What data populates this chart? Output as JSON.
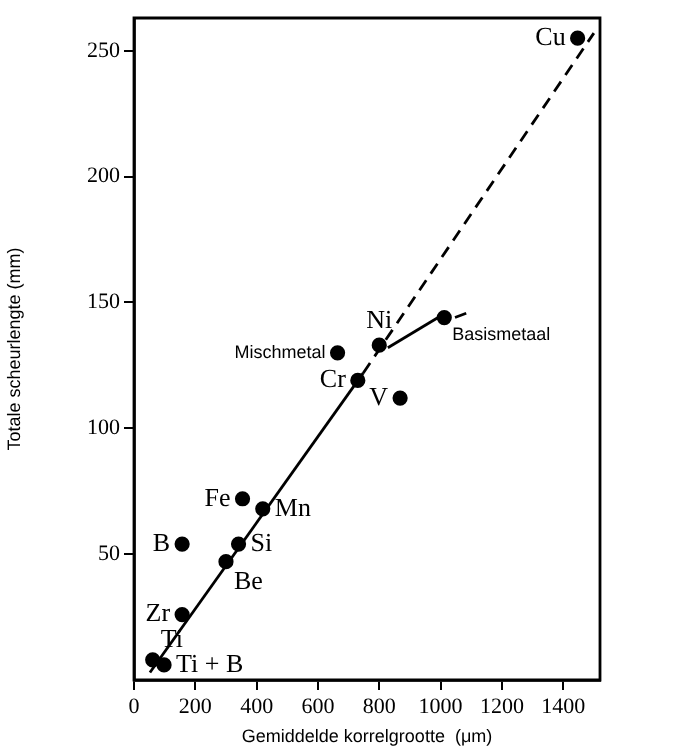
{
  "chart_data": {
    "type": "scatter",
    "xlabel": "Gemiddelde korrelgrootte  (μm)",
    "ylabel": "Totale scheurlengte (mm)",
    "xlim": [
      0,
      1520
    ],
    "xticks": [
      0,
      200,
      400,
      600,
      800,
      1000,
      1200,
      1400
    ],
    "ylim": [
      0,
      263
    ],
    "yticks": [
      50,
      100,
      150,
      200,
      250
    ],
    "grid": false,
    "legend": false,
    "marker": "circle",
    "series": [
      {
        "color": "#000000",
        "x": [
          1447,
          1012,
          800,
          664,
          730,
          868,
          354,
          420,
          157,
          341,
          300,
          157,
          61,
          98
        ],
        "values": [
          255,
          144,
          133,
          130,
          119,
          112,
          72,
          68,
          54,
          54,
          47,
          26,
          8,
          6
        ]
      },
      {
        "type": "line",
        "color": "#000000",
        "line_style": "solid",
        "marker": "none",
        "x": [
          52,
          748
        ],
        "values": [
          3,
          122
        ]
      },
      {
        "type": "line",
        "color": "#000000",
        "line_style": "dashed",
        "marker": "none",
        "x": [
          748,
          1500
        ],
        "values": [
          122,
          257
        ]
      },
      {
        "type": "line",
        "color": "#000000",
        "line_style": "solid",
        "marker": "none",
        "x": [
          828,
          992
        ],
        "values": [
          132,
          144
        ]
      },
      {
        "type": "line",
        "color": "#000000",
        "line_style": "dashed",
        "marker": "none",
        "x": [
          1047,
          1090
        ],
        "values": [
          144,
          146
        ]
      }
    ],
    "annotations": [
      {
        "text": "Cu",
        "x": 1447,
        "y": 255
      },
      {
        "text": "Basismetaal",
        "x": 1012,
        "y": 144
      },
      {
        "text": "Ni",
        "x": 800,
        "y": 133
      },
      {
        "text": "Mischmetal",
        "x": 664,
        "y": 130
      },
      {
        "text": "Cr",
        "x": 730,
        "y": 119
      },
      {
        "text": "V",
        "x": 868,
        "y": 112
      },
      {
        "text": "Fe",
        "x": 354,
        "y": 72
      },
      {
        "text": "Mn",
        "x": 420,
        "y": 68
      },
      {
        "text": "B",
        "x": 157,
        "y": 54
      },
      {
        "text": "Si",
        "x": 341,
        "y": 54
      },
      {
        "text": "Be",
        "x": 300,
        "y": 47
      },
      {
        "text": "Zr",
        "x": 157,
        "y": 26
      },
      {
        "text": "Ti",
        "x": 61,
        "y": 8
      },
      {
        "text": "Ti + B",
        "x": 98,
        "y": 6
      }
    ]
  }
}
